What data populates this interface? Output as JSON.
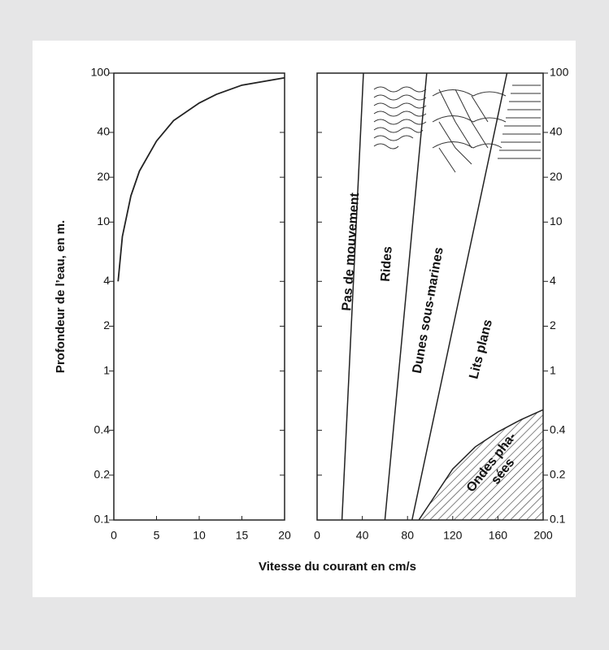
{
  "xlabel": "Vitesse du courant en cm/s",
  "chart_data": [
    {
      "type": "line",
      "ylabel": "Profondeur de l’eau, en m.",
      "x": [
        0.5,
        1,
        2,
        3,
        5,
        7,
        10,
        12,
        15,
        20
      ],
      "values": [
        4,
        8,
        15,
        22,
        35,
        48,
        63,
        72,
        83,
        93
      ],
      "color": "#222",
      "xlim": [
        0,
        20
      ],
      "xticks": [
        0,
        5,
        10,
        15,
        20
      ],
      "ylim": [
        0.1,
        100
      ],
      "yticks": [
        0.1,
        0.2,
        0.4,
        1,
        2,
        4,
        10,
        20,
        40,
        100
      ],
      "yscale": "log"
    },
    {
      "type": "regime",
      "xlim": [
        0,
        200
      ],
      "xticks": [
        0,
        40,
        80,
        120,
        160,
        200
      ],
      "ylim": [
        0.1,
        100
      ],
      "yticks": [
        0.1,
        0.2,
        0.4,
        1,
        2,
        4,
        10,
        20,
        40,
        100
      ],
      "yscale": "log",
      "color": "#222",
      "boundaries": [
        {
          "x": [
            22,
            41
          ],
          "y": [
            0.1,
            100
          ]
        },
        {
          "x": [
            60,
            97
          ],
          "y": [
            0.1,
            100
          ]
        },
        {
          "x": [
            84,
            168
          ],
          "y": [
            0.1,
            100
          ]
        }
      ],
      "bedforms_curve": {
        "x": [
          90,
          100,
          120,
          140,
          160,
          180,
          200
        ],
        "y": [
          0.1,
          0.13,
          0.22,
          0.31,
          0.39,
          0.47,
          0.55
        ]
      },
      "regions": [
        "Pas de mouvement",
        "Rides",
        "Dunes sous-marines",
        "Lits plans",
        [
          "Ondes pha-",
          "sées"
        ]
      ]
    }
  ]
}
